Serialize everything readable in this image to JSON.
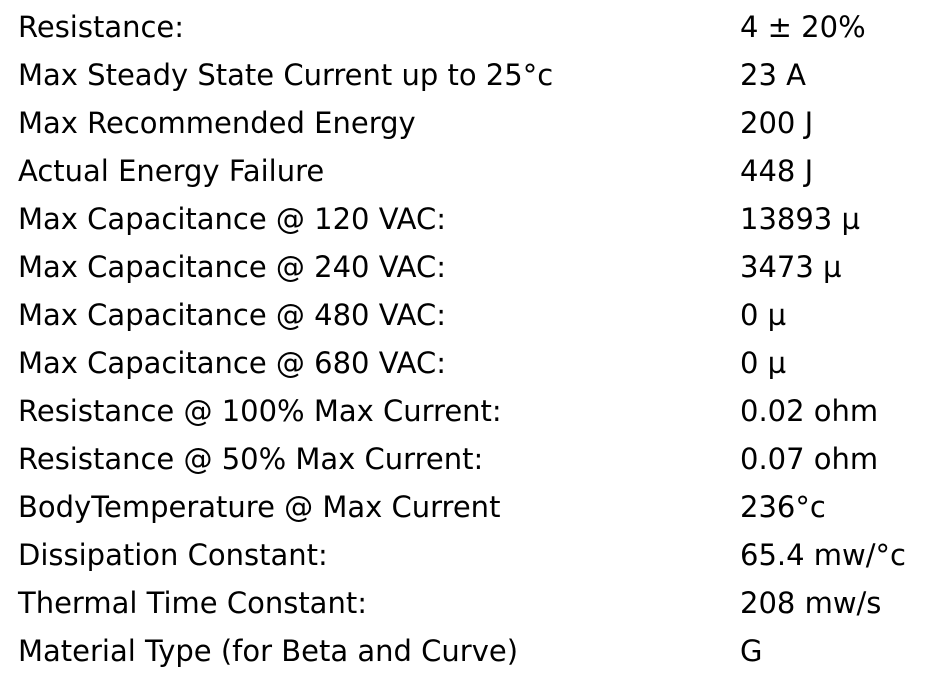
{
  "table": {
    "rows": [
      [
        "Resistance:",
        "4 ± 20%"
      ],
      [
        "Max Steady State Current up to 25°c",
        "23 A"
      ],
      [
        "Max Recommended Energy",
        "200 J"
      ],
      [
        "Actual Energy Failure",
        "448 J"
      ],
      [
        "Max Capacitance @ 120 VAC:",
        "13893 µ"
      ],
      [
        "Max Capacitance @ 240 VAC:",
        "3473 µ"
      ],
      [
        "Max Capacitance @ 480 VAC:",
        "0 µ"
      ],
      [
        "Max Capacitance @ 680 VAC:",
        "0 µ"
      ],
      [
        "Resistance @ 100% Max Current:",
        "0.02 ohm"
      ],
      [
        "Resistance @ 50% Max Current:",
        "0.07 ohm"
      ],
      [
        "BodyTemperature @ Max Current",
        "236°c"
      ],
      [
        "Dissipation Constant:",
        "65.4 mw/°c"
      ],
      [
        "Thermal Time Constant:",
        "208 mw/s"
      ],
      [
        "Material Type (for Beta and Curve)",
        "G"
      ]
    ]
  }
}
